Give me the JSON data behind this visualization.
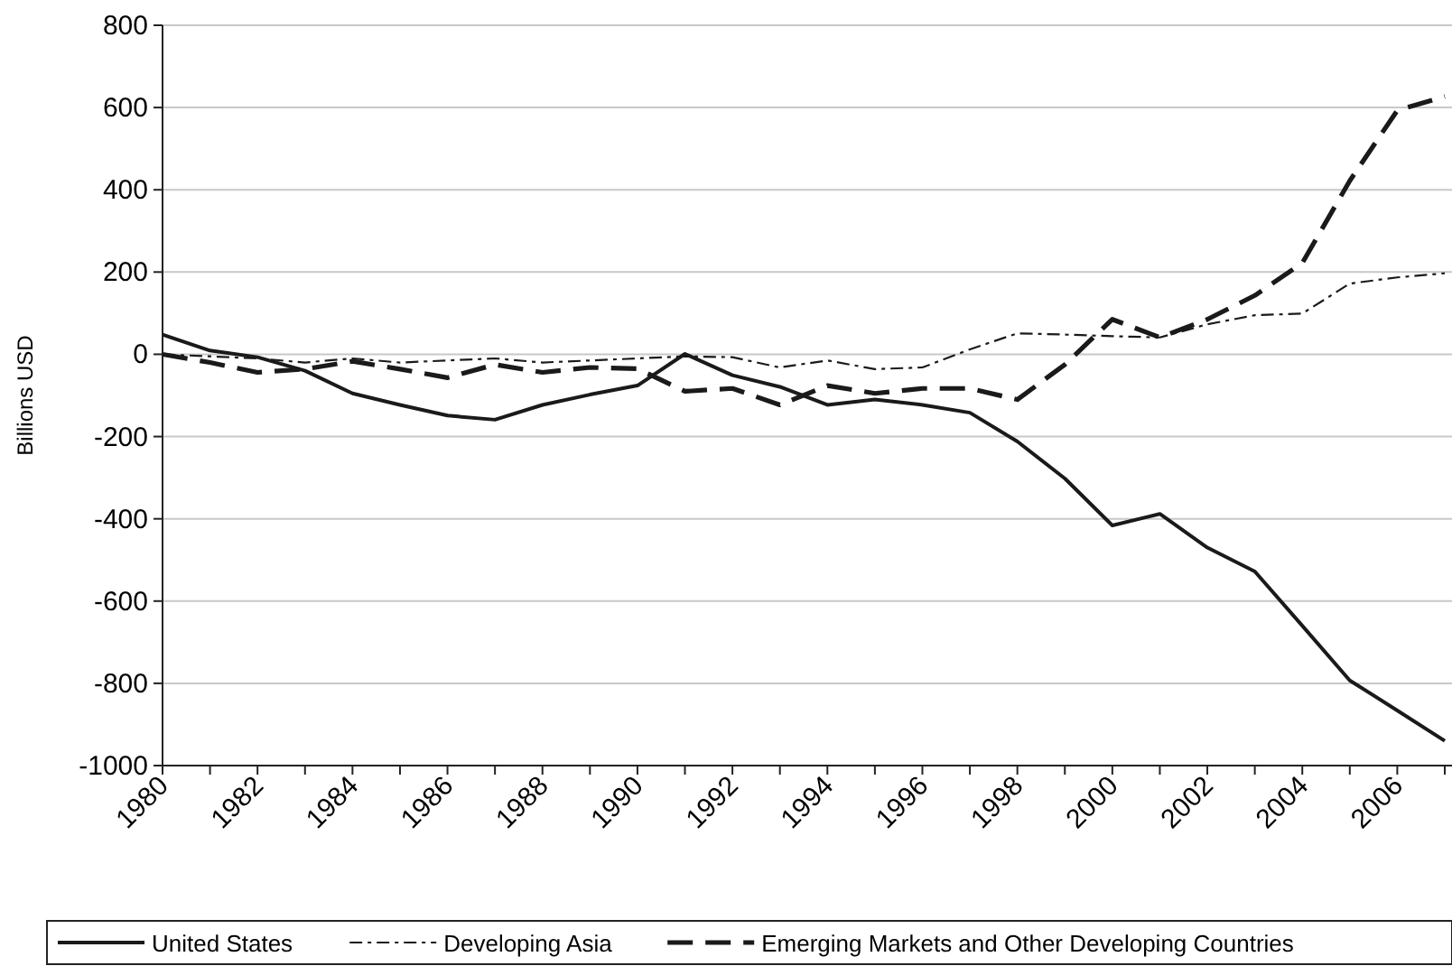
{
  "chart_data": {
    "type": "line",
    "ylabel": "Billions USD",
    "x": [
      1980,
      1981,
      1982,
      1983,
      1984,
      1985,
      1986,
      1987,
      1988,
      1989,
      1990,
      1991,
      1992,
      1993,
      1994,
      1995,
      1996,
      1997,
      1998,
      1999,
      2000,
      2001,
      2002,
      2003,
      2004,
      2005,
      2006,
      2007
    ],
    "xlim": [
      1980,
      2007
    ],
    "xticks": [
      1980,
      {
        "value": 1981,
        "label": null
      },
      1982,
      {
        "value": 1983,
        "label": null
      },
      1984,
      {
        "value": 1985,
        "label": null
      },
      1986,
      {
        "value": 1987,
        "label": null
      },
      1988,
      {
        "value": 1989,
        "label": null
      },
      1990,
      {
        "value": 1991,
        "label": null
      },
      1992,
      {
        "value": 1993,
        "label": null
      },
      1994,
      {
        "value": 1995,
        "label": null
      },
      1996,
      {
        "value": 1997,
        "label": null
      },
      1998,
      {
        "value": 1999,
        "label": null
      },
      2000,
      {
        "value": 2001,
        "label": null
      },
      2002,
      {
        "value": 2003,
        "label": null
      },
      2004,
      {
        "value": 2005,
        "label": null
      },
      2006,
      {
        "value": 2007,
        "label": null
      }
    ],
    "ylim": [
      -1000,
      800
    ],
    "yticks": [
      -1000,
      -800,
      -600,
      -400,
      -200,
      0,
      200,
      400,
      600,
      800
    ],
    "grid": "y",
    "legend": "bottom",
    "series": [
      {
        "name": "United States",
        "color": "#1a1a1a",
        "line_style": "solid",
        "values": [
          48,
          9,
          -7,
          -40,
          -95,
          -123,
          -149,
          -159,
          -123,
          -98,
          -76,
          1,
          -51,
          -79,
          -123,
          -110,
          -123,
          -142,
          -212,
          -302,
          -416,
          -388,
          -470,
          -528,
          -660,
          -793,
          -866,
          -940
        ]
      },
      {
        "name": "Developing Asia",
        "color": "#1a1a1a",
        "line_style": "dashdot",
        "values": [
          0,
          -5,
          -10,
          -20,
          -10,
          -20,
          -15,
          -10,
          -20,
          -15,
          -10,
          -5,
          -7,
          -32,
          -15,
          -36,
          -32,
          12,
          51,
          48,
          44,
          41,
          73,
          95,
          99,
          172,
          187,
          197
        ]
      },
      {
        "name": "Emerging Markets and Other Developing Countries",
        "color": "#1a1a1a",
        "line_style": "dashed",
        "values": [
          0,
          -20,
          -44,
          -36,
          -17,
          -36,
          -57,
          -25,
          -44,
          -32,
          -35,
          -90,
          -83,
          -123,
          -76,
          -95,
          -83,
          -83,
          -110,
          -25,
          85,
          41,
          85,
          143,
          222,
          422,
          593,
          627
        ]
      }
    ]
  }
}
